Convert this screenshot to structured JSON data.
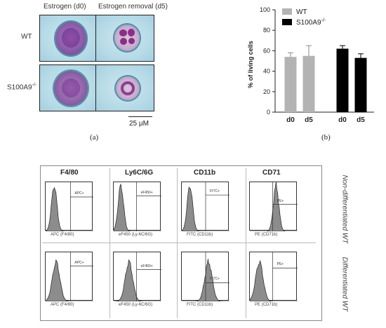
{
  "panel_a": {
    "col_headers": [
      "Estrogen (d0)",
      "Estrogen removal (d5)"
    ],
    "row_headers": [
      "WT",
      "S100A9"
    ],
    "row_header_sup": "-/-",
    "scale_label": "25 µM",
    "letter": "(a)"
  },
  "panel_b": {
    "letter": "(b)"
  },
  "chart_data": {
    "type": "bar",
    "ylabel": "% of living cells",
    "ylim": [
      0,
      100
    ],
    "yticks": [
      "0",
      "20",
      "40",
      "60",
      "80",
      "100"
    ],
    "categories": [
      "d0",
      "d5",
      "d0",
      "d5"
    ],
    "values": [
      54,
      55,
      62,
      53
    ],
    "errors": [
      4,
      10,
      3,
      4
    ],
    "colors": [
      "#b3b3b3",
      "#b3b3b3",
      "#000000",
      "#000000"
    ],
    "legend": [
      {
        "name": "WT",
        "color": "#b3b3b3"
      },
      {
        "name": "S100A9",
        "sup": "-/-",
        "color": "#000000"
      }
    ],
    "legend_position": "top"
  },
  "panel_c": {
    "col_headers": [
      "F4/80",
      "Ly6C/6G",
      "CD11b",
      "CD71"
    ],
    "row_labels": [
      "Non-differentiated WT",
      "Differentiated WT"
    ],
    "x_labels": [
      "APC (F4/80)",
      "eF450 (Ly-6C/6G)",
      "FITC (CD11b)",
      "PE (CD71b)"
    ],
    "gates_row1": [
      "APC+",
      "eF450+",
      "FITC+",
      "PE+"
    ],
    "gates_row2": [
      "APC+",
      "eF450+",
      "FITC+",
      "PE+"
    ]
  }
}
